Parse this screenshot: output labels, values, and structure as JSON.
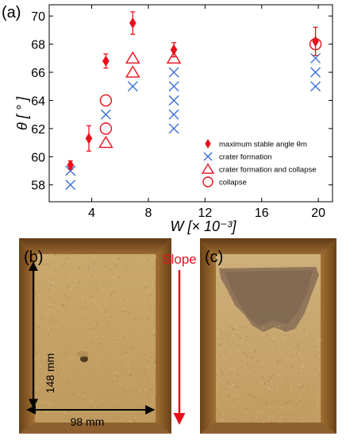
{
  "panels": {
    "a": "(a)",
    "b": "(b)",
    "c": "(c)"
  },
  "photo": {
    "slope_label": "Slope",
    "height_label": "148 mm",
    "width_label": "98 mm"
  },
  "colors": {
    "red": "#e8101c",
    "blue": "#3a6fd8",
    "photo_base": "#c59a5e",
    "photo_frame": "#8a5a24",
    "photo_shadow": "#5e3a16"
  },
  "chart_data": {
    "type": "scatter",
    "xlabel": "W [× 10⁻³]",
    "ylabel": "θ [ ° ]",
    "xlim": [
      1,
      21
    ],
    "ylim": [
      56.8,
      70.8
    ],
    "xticks": [
      4,
      8,
      12,
      16,
      20
    ],
    "yticks": [
      58,
      60,
      62,
      64,
      66,
      68,
      70
    ],
    "legend_position": "bottom-right",
    "series": [
      {
        "name": "maximum stable angle θm",
        "marker": "diamond",
        "color": "#e8101c",
        "points": [
          {
            "x": 2.5,
            "y": 59.4,
            "err": 0.3
          },
          {
            "x": 3.8,
            "y": 61.3,
            "err": 0.9
          },
          {
            "x": 5.0,
            "y": 66.8,
            "err": 0.5
          },
          {
            "x": 6.9,
            "y": 69.5,
            "err": 0.8
          },
          {
            "x": 9.8,
            "y": 67.6,
            "err": 0.5
          },
          {
            "x": 19.8,
            "y": 68.2,
            "err": 1.0
          }
        ]
      },
      {
        "name": "crater formation",
        "marker": "x",
        "color": "#3a6fd8",
        "points": [
          {
            "x": 2.5,
            "y": 58
          },
          {
            "x": 2.5,
            "y": 59
          },
          {
            "x": 5.0,
            "y": 63
          },
          {
            "x": 6.9,
            "y": 65
          },
          {
            "x": 9.8,
            "y": 62
          },
          {
            "x": 9.8,
            "y": 63
          },
          {
            "x": 9.8,
            "y": 64
          },
          {
            "x": 9.8,
            "y": 65
          },
          {
            "x": 9.8,
            "y": 66
          },
          {
            "x": 19.8,
            "y": 65
          },
          {
            "x": 19.8,
            "y": 66
          },
          {
            "x": 19.8,
            "y": 67
          }
        ]
      },
      {
        "name": "crater formation and collapse",
        "marker": "triangle",
        "color": "#e8101c",
        "points": [
          {
            "x": 5.0,
            "y": 61
          },
          {
            "x": 6.9,
            "y": 66
          },
          {
            "x": 6.9,
            "y": 67
          },
          {
            "x": 9.8,
            "y": 67
          }
        ]
      },
      {
        "name": "collapse",
        "marker": "circle",
        "color": "#e8101c",
        "points": [
          {
            "x": 5.0,
            "y": 62
          },
          {
            "x": 5.0,
            "y": 64
          },
          {
            "x": 19.8,
            "y": 68
          }
        ]
      }
    ]
  }
}
